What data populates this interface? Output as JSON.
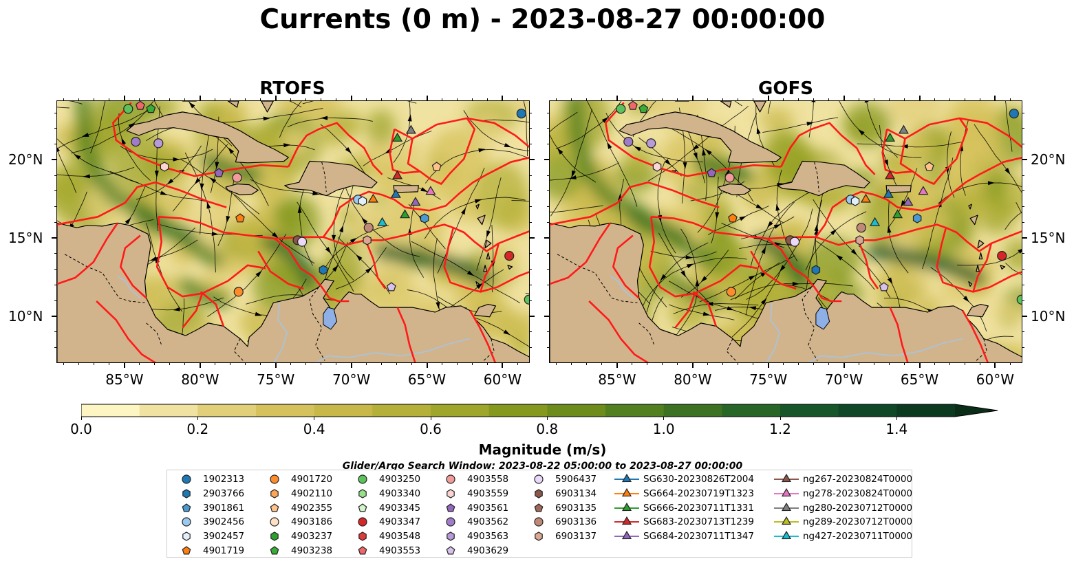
{
  "title": "Currents (0 m) - 2023-08-27 00:00:00",
  "panels": [
    {
      "title": "RTOFS",
      "key": "rtofs"
    },
    {
      "title": "GOFS",
      "key": "gofs"
    }
  ],
  "map_extent": {
    "lon_min": -89.5,
    "lon_max": -58.2,
    "lat_min": 7.0,
    "lat_max": 23.8
  },
  "lon_ticks": [
    {
      "value": -85,
      "label": "85°W"
    },
    {
      "value": -80,
      "label": "80°W"
    },
    {
      "value": -75,
      "label": "75°W"
    },
    {
      "value": -70,
      "label": "70°W"
    },
    {
      "value": -65,
      "label": "65°W"
    },
    {
      "value": -60,
      "label": "60°W"
    }
  ],
  "lat_ticks": [
    {
      "value": 20,
      "label": "20°N"
    },
    {
      "value": 15,
      "label": "15°N"
    },
    {
      "value": 10,
      "label": "10°N"
    }
  ],
  "colors": {
    "land": "#d2b48c",
    "eez_lines": "#ff1a1a",
    "streamlines": "#000000",
    "lake": "#8fb0e6"
  },
  "colorbar": {
    "label": "Magnitude (m/s)",
    "min": 0.0,
    "max": 1.5,
    "step": 0.1,
    "extend": "max",
    "ticks": [
      "0.0",
      "0.2",
      "0.4",
      "0.6",
      "0.8",
      "1.0",
      "1.2",
      "1.4"
    ],
    "tick_values": [
      0.0,
      0.2,
      0.4,
      0.6,
      0.8,
      1.0,
      1.2,
      1.4
    ],
    "colors": [
      "#fdf6c3",
      "#f0e2a0",
      "#e2cf7a",
      "#d5c25c",
      "#c8b84a",
      "#b4b03a",
      "#9fa62c",
      "#86991f",
      "#6d8c1c",
      "#53801f",
      "#3c7222",
      "#276626",
      "#175628",
      "#104726",
      "#0c3a20",
      "#0a2d18"
    ]
  },
  "legend": {
    "title": "Glider/Argo Search Window: 2023-08-22 05:00:00 to 2023-08-27 00:00:00",
    "columns": [
      [
        {
          "label": "1902313",
          "marker": "circle",
          "color": "#1f77b4"
        },
        {
          "label": "2903766",
          "marker": "hexagon",
          "color": "#1f77b4"
        },
        {
          "label": "3901861",
          "marker": "pentagon",
          "color": "#4a9ad1"
        },
        {
          "label": "3902456",
          "marker": "circle",
          "color": "#9cc9ee"
        },
        {
          "label": "3902457",
          "marker": "hexagon",
          "color": "#e3f0fb"
        },
        {
          "label": "4901719",
          "marker": "pentagon",
          "color": "#ff7f0e"
        }
      ],
      [
        {
          "label": "4901720",
          "marker": "circle",
          "color": "#ff8c2a"
        },
        {
          "label": "4902110",
          "marker": "hexagon",
          "color": "#ffa557"
        },
        {
          "label": "4902355",
          "marker": "pentagon",
          "color": "#ffc28b"
        },
        {
          "label": "4903186",
          "marker": "circle",
          "color": "#ffe1c2"
        },
        {
          "label": "4903237",
          "marker": "hexagon",
          "color": "#2ca02c"
        },
        {
          "label": "4903238",
          "marker": "pentagon",
          "color": "#38ad38"
        }
      ],
      [
        {
          "label": "4903250",
          "marker": "circle",
          "color": "#5cc25c"
        },
        {
          "label": "4903340",
          "marker": "hexagon",
          "color": "#98df8a"
        },
        {
          "label": "4903345",
          "marker": "pentagon",
          "color": "#d4f5cc"
        },
        {
          "label": "4903347",
          "marker": "circle",
          "color": "#d62728"
        },
        {
          "label": "4903548",
          "marker": "hexagon",
          "color": "#e03b3b"
        },
        {
          "label": "4903553",
          "marker": "pentagon",
          "color": "#f0676a"
        }
      ],
      [
        {
          "label": "4903558",
          "marker": "circle",
          "color": "#f29b9b"
        },
        {
          "label": "4903559",
          "marker": "hexagon",
          "color": "#fbd5d3"
        },
        {
          "label": "4903561",
          "marker": "pentagon",
          "color": "#9467bd"
        },
        {
          "label": "4903562",
          "marker": "circle",
          "color": "#a07cc8"
        },
        {
          "label": "4903563",
          "marker": "hexagon",
          "color": "#b99ad8"
        },
        {
          "label": "4903629",
          "marker": "pentagon",
          "color": "#d8c2ec"
        }
      ],
      [
        {
          "label": "5906437",
          "marker": "circle",
          "color": "#ecd9fa"
        },
        {
          "label": "6903134",
          "marker": "hexagon",
          "color": "#8c564b"
        },
        {
          "label": "6903135",
          "marker": "pentagon",
          "color": "#a0675a"
        },
        {
          "label": "6903136",
          "marker": "circle",
          "color": "#c08877"
        },
        {
          "label": "6903137",
          "marker": "hexagon",
          "color": "#dba893"
        }
      ],
      [
        {
          "label": "SG630-20230826T2004",
          "marker": "triangle",
          "color": "#1f77b4"
        },
        {
          "label": "SG664-20230719T1323",
          "marker": "triangle",
          "color": "#ff7f0e"
        },
        {
          "label": "SG666-20230711T1331",
          "marker": "triangle",
          "color": "#2ca02c"
        },
        {
          "label": "SG683-20230713T1239",
          "marker": "triangle",
          "color": "#d62728"
        },
        {
          "label": "SG684-20230711T1347",
          "marker": "triangle",
          "color": "#9467bd"
        }
      ],
      [
        {
          "label": "ng267-20230824T0000",
          "marker": "triangle",
          "color": "#8c564b"
        },
        {
          "label": "ng278-20230824T0000",
          "marker": "triangle",
          "color": "#e377c2"
        },
        {
          "label": "ng280-20230712T0000",
          "marker": "triangle",
          "color": "#7f7f7f"
        },
        {
          "label": "ng289-20230712T0000",
          "marker": "triangle",
          "color": "#bcbd22"
        },
        {
          "label": "ng427-20230711T0000",
          "marker": "triangle",
          "color": "#17becf"
        }
      ]
    ]
  },
  "platforms": [
    {
      "lon": -84.8,
      "lat": 23.3,
      "marker": "circle",
      "color": "#5cc25c"
    },
    {
      "lon": -84.0,
      "lat": 23.5,
      "marker": "pentagon",
      "color": "#f0676a"
    },
    {
      "lon": -83.3,
      "lat": 23.3,
      "marker": "pentagon",
      "color": "#38ad38"
    },
    {
      "lon": -58.8,
      "lat": 23.0,
      "marker": "circle",
      "color": "#1f77b4"
    },
    {
      "lon": -84.3,
      "lat": 21.2,
      "marker": "circle",
      "color": "#a07cc8"
    },
    {
      "lon": -82.8,
      "lat": 21.1,
      "marker": "circle",
      "color": "#b99ad8"
    },
    {
      "lon": -82.4,
      "lat": 19.6,
      "marker": "hexagon",
      "color": "#fbd5d3"
    },
    {
      "lon": -78.8,
      "lat": 19.2,
      "marker": "pentagon",
      "color": "#9467bd"
    },
    {
      "lon": -77.6,
      "lat": 18.9,
      "marker": "circle",
      "color": "#f29b9b"
    },
    {
      "lon": -77.4,
      "lat": 16.3,
      "marker": "pentagon",
      "color": "#ff7f0e"
    },
    {
      "lon": -77.5,
      "lat": 11.6,
      "marker": "circle",
      "color": "#ff8c2a"
    },
    {
      "lon": -73.6,
      "lat": 14.9,
      "marker": "circle",
      "color": "#8c564b"
    },
    {
      "lon": -73.3,
      "lat": 14.8,
      "marker": "circle",
      "color": "#ecd9fa"
    },
    {
      "lon": -71.9,
      "lat": 13.0,
      "marker": "hexagon",
      "color": "#1f77b4"
    },
    {
      "lon": -69.6,
      "lat": 17.5,
      "marker": "circle",
      "color": "#9cc9ee"
    },
    {
      "lon": -69.3,
      "lat": 17.4,
      "marker": "hexagon",
      "color": "#e3f0fb"
    },
    {
      "lon": -68.9,
      "lat": 15.7,
      "marker": "circle",
      "color": "#c08877"
    },
    {
      "lon": -69.0,
      "lat": 14.9,
      "marker": "hexagon",
      "color": "#dba893"
    },
    {
      "lon": -68.0,
      "lat": 16.0,
      "marker": "triangle",
      "color": "#17becf"
    },
    {
      "lon": -68.6,
      "lat": 17.5,
      "marker": "triangle",
      "color": "#ff7f0e"
    },
    {
      "lon": -67.0,
      "lat": 21.4,
      "marker": "triangle",
      "color": "#2ca02c"
    },
    {
      "lon": -66.1,
      "lat": 21.9,
      "marker": "triangle",
      "color": "#7f7f7f"
    },
    {
      "lon": -67.0,
      "lat": 19.0,
      "marker": "triangle",
      "color": "#d62728"
    },
    {
      "lon": -67.1,
      "lat": 17.8,
      "marker": "triangle",
      "color": "#1f77b4"
    },
    {
      "lon": -66.5,
      "lat": 16.5,
      "marker": "triangle",
      "color": "#2ca02c"
    },
    {
      "lon": -65.8,
      "lat": 17.3,
      "marker": "triangle",
      "color": "#9467bd"
    },
    {
      "lon": -65.2,
      "lat": 16.3,
      "marker": "hexagon",
      "color": "#4a9ad1"
    },
    {
      "lon": -64.8,
      "lat": 18.0,
      "marker": "triangle",
      "color": "#e377c2"
    },
    {
      "lon": -64.4,
      "lat": 19.6,
      "marker": "pentagon",
      "color": "#ffc28b"
    },
    {
      "lon": -67.4,
      "lat": 11.9,
      "marker": "pentagon",
      "color": "#d8c2ec"
    },
    {
      "lon": -59.6,
      "lat": 13.9,
      "marker": "circle",
      "color": "#d62728"
    },
    {
      "lon": -58.3,
      "lat": 11.1,
      "marker": "circle",
      "color": "#5cc25c"
    }
  ]
}
